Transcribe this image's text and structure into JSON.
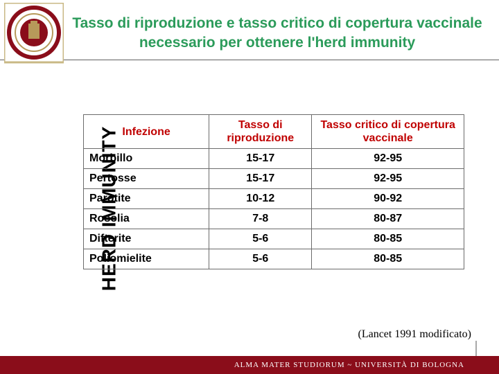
{
  "colors": {
    "title": "#2b9b5a",
    "header_text": "#c00000",
    "table_border": "#6b6b6b",
    "footer_bg": "#8a0d1a",
    "seal_outer": "#8a0d1a",
    "seal_inner": "#b7995a"
  },
  "title": "Tasso di riproduzione e tasso critico di copertura vaccinale necessario per ottenere l'herd immunity",
  "sidebar_label": "HERD IMMUNITY",
  "table": {
    "columns": [
      {
        "label": "Infezione",
        "width": "33%",
        "align": "left"
      },
      {
        "label": "Tasso di riproduzione",
        "width": "27%",
        "align": "center"
      },
      {
        "label": "Tasso critico di copertura vaccinale",
        "width": "40%",
        "align": "center"
      }
    ],
    "rows": [
      [
        "Morbillo",
        "15-17",
        "92-95"
      ],
      [
        "Pertosse",
        "15-17",
        "92-95"
      ],
      [
        "Parotite",
        "10-12",
        "90-92"
      ],
      [
        "Rosolia",
        "7-8",
        "80-87"
      ],
      [
        "Difterite",
        "5-6",
        "80-85"
      ],
      [
        "Poliomielite",
        "5-6",
        "80-85"
      ]
    ]
  },
  "citation": "(Lancet 1991 modificato)",
  "footer": {
    "text": "ALMA MATER STUDIORUM ~ UNIVERSITÀ DI BOLOGNA"
  }
}
